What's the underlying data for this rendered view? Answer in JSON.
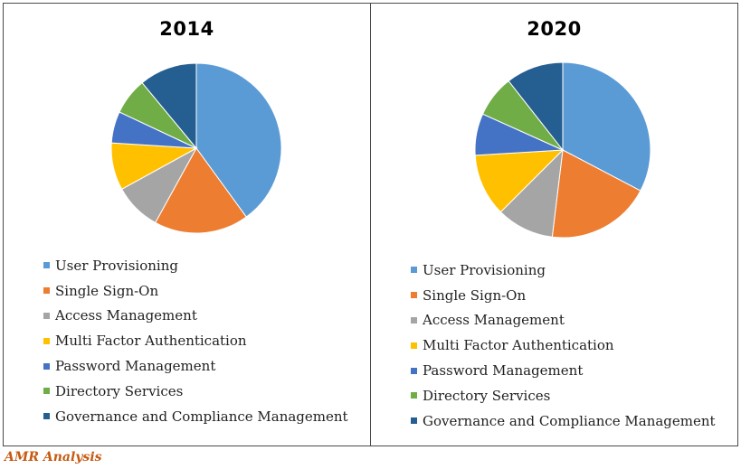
{
  "source_label": "AMR Analysis",
  "chart_data": [
    {
      "type": "pie",
      "title": "2014",
      "categories": [
        "User Provisioning",
        "Single Sign-On",
        "Access Management",
        "Multi Factor Authentication",
        "Password Management",
        "Directory Services",
        "Governance and Compliance Management"
      ],
      "values": [
        40,
        18,
        9,
        9,
        6,
        7,
        11
      ],
      "colors": [
        "#5b9bd5",
        "#ed7d31",
        "#a5a5a5",
        "#ffc000",
        "#4472c4",
        "#70ad47",
        "#255e91"
      ],
      "legend_position": "bottom"
    },
    {
      "type": "pie",
      "title": "2020",
      "categories": [
        "User Provisioning",
        "Single Sign-On",
        "Access Management",
        "Multi Factor Authentication",
        "Password Management",
        "Directory Services",
        "Governance and Compliance Management"
      ],
      "values": [
        34,
        20,
        11,
        12,
        8,
        8,
        11
      ],
      "colors": [
        "#5b9bd5",
        "#ed7d31",
        "#a5a5a5",
        "#ffc000",
        "#4472c4",
        "#70ad47",
        "#255e91"
      ],
      "legend_position": "bottom"
    }
  ]
}
